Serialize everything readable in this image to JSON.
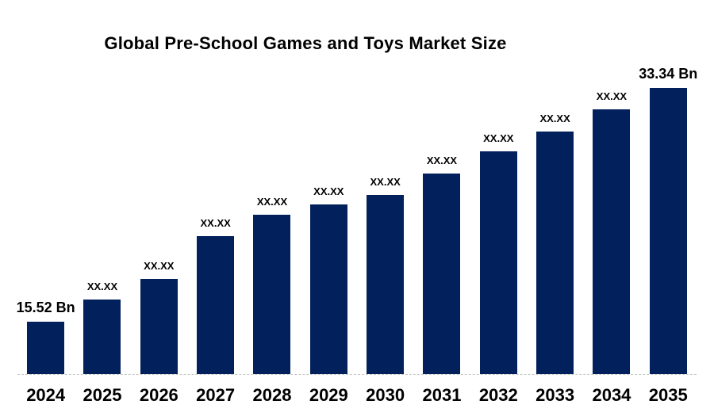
{
  "chart_data": {
    "type": "bar",
    "title": "Global Pre-School Games and Toys Market Size",
    "unit": "Bn",
    "categories": [
      "2024",
      "2025",
      "2026",
      "2027",
      "2028",
      "2029",
      "2030",
      "2031",
      "2032",
      "2033",
      "2034",
      "2035"
    ],
    "values": [
      15.52,
      17.2,
      18.75,
      22.0,
      23.65,
      24.45,
      25.2,
      26.8,
      28.5,
      30.0,
      31.7,
      33.34
    ],
    "bar_labels": [
      "15.52 Bn",
      "XX.XX",
      "XX.XX",
      "XX.XX",
      "XX.XX",
      "XX.XX",
      "XX.XX",
      "XX.XX",
      "XX.XX",
      "XX.XX",
      "XX.XX",
      "33.34 Bn"
    ],
    "labeled_values": {
      "2024": "15.52 Bn",
      "2035": "33.34 Bn"
    },
    "values_note": "Only 2024 and 2035 values are printed on the chart; intermediate bars show XX.XX placeholders and their values are estimated from bar heights.",
    "ylim": [
      11.5,
      33.34
    ],
    "xlabel": "",
    "ylabel": "",
    "grid": false,
    "legend": "none",
    "bar_color": "#02215C",
    "text_color": "#000000",
    "axis_line_color": "#c0c0c0",
    "background_color": "#ffffff"
  }
}
